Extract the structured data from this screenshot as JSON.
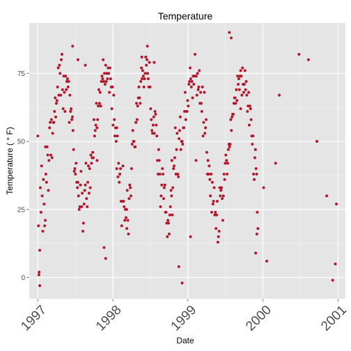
{
  "chart_data": {
    "type": "scatter",
    "title": "Temperature",
    "xlabel": "Date",
    "ylabel": "Temperature ( ° F)",
    "x_range": [
      "1996-11-20",
      "2001-02-06"
    ],
    "ylim": [
      -7.8,
      93.5
    ],
    "x_ticks": [
      {
        "label": "1997",
        "date": "1997-01-01"
      },
      {
        "label": "1998",
        "date": "1998-01-01"
      },
      {
        "label": "1999",
        "date": "1999-01-01"
      },
      {
        "label": "2000",
        "date": "2000-01-01"
      },
      {
        "label": "2001",
        "date": "2001-01-01"
      }
    ],
    "y_ticks": [
      0,
      25,
      50,
      75
    ],
    "grid": true,
    "background_color": "#e5e5e5",
    "point_color": "#b2182b",
    "x_start": "1997-01-01",
    "x_step_days": 3,
    "y": [
      52,
      19,
      2,
      10,
      33,
      24,
      41,
      30,
      17,
      36,
      27,
      19,
      21,
      38,
      35,
      48,
      45,
      32,
      43,
      55,
      57,
      45,
      58,
      44,
      53,
      57,
      57,
      61,
      66,
      59,
      64,
      65,
      70,
      77,
      67,
      78,
      75,
      67,
      80,
      82,
      69,
      62,
      74,
      68,
      61,
      74,
      69,
      72,
      73,
      70,
      72,
      57,
      67,
      61,
      62,
      58,
      59,
      54,
      47,
      39,
      40,
      38,
      42,
      35,
      33,
      35,
      30,
      25,
      26,
      34,
      39,
      26,
      31,
      17,
      20,
      27,
      32,
      34,
      42,
      29,
      26,
      35,
      41,
      31,
      40,
      33,
      45,
      42,
      44,
      46,
      44,
      58,
      52,
      54,
      56,
      64,
      55,
      58,
      63,
      69,
      64,
      68,
      63,
      72,
      74,
      73,
      80,
      72,
      75,
      71,
      78,
      72,
      75,
      73,
      77,
      75,
      68,
      77,
      73,
      70,
      62,
      70,
      56,
      67,
      58,
      52,
      55,
      50,
      55,
      52,
      37,
      42,
      35,
      38,
      40,
      28,
      19,
      28,
      41,
      28,
      26,
      21,
      25,
      22,
      25,
      32,
      21,
      16,
      29,
      34,
      33,
      30,
      40,
      49,
      54,
      50,
      50,
      48,
      48,
      57,
      64,
      58,
      63,
      66,
      70,
      66,
      64,
      72,
      77,
      73,
      76,
      74,
      70,
      73,
      75,
      81,
      78,
      80,
      75,
      73,
      70,
      79,
      70,
      62,
      58,
      54,
      53,
      56,
      59,
      53,
      61,
      60,
      56,
      52,
      43,
      38,
      47,
      43,
      38,
      26,
      30,
      34,
      40,
      38,
      29,
      33,
      34,
      24,
      24,
      20,
      15,
      21,
      20,
      16,
      23,
      26,
      32,
      30,
      23,
      33,
      40,
      41,
      44,
      55,
      38,
      47,
      53,
      38,
      37,
      51,
      54,
      59,
      47,
      50,
      50,
      49,
      55,
      55,
      61,
      68,
      58,
      61,
      61,
      65,
      63,
      71,
      72,
      77,
      73,
      70,
      72,
      66,
      74,
      71,
      74,
      82,
      74,
      74,
      67,
      75,
      69,
      70,
      76,
      64,
      68,
      64,
      61,
      70,
      52,
      57,
      68,
      53,
      55,
      58,
      46,
      38,
      43,
      38,
      41,
      36,
      30,
      38,
      24,
      35,
      27,
      28,
      33,
      23,
      24,
      18,
      23,
      28,
      13,
      15,
      17,
      33,
      30,
      32,
      33,
      29,
      21,
      30,
      38,
      36,
      42,
      45,
      43,
      38,
      42,
      47,
      49,
      48,
      49,
      58,
      54,
      59,
      60,
      60,
      64,
      66,
      66,
      64,
      69,
      65,
      74,
      71,
      73,
      69,
      74,
      76,
      74,
      67,
      77,
      71,
      68,
      71,
      76,
      69,
      72,
      67,
      61,
      63,
      68,
      56,
      63,
      62,
      58,
      52,
      49,
      52,
      38,
      36,
      44,
      47,
      40,
      38,
      24,
      18
    ],
    "extra_points": [
      {
        "x": "1997-01-06",
        "y": 1
      },
      {
        "x": "1997-01-10",
        "y": -3
      },
      {
        "x": "1997-02-07",
        "y": 48
      },
      {
        "x": "1997-06-19",
        "y": 85
      },
      {
        "x": "1997-07-15",
        "y": 80
      },
      {
        "x": "1997-08-20",
        "y": 78
      },
      {
        "x": "1997-10-16",
        "y": 43
      },
      {
        "x": "1997-11-19",
        "y": 11
      },
      {
        "x": "1997-11-27",
        "y": 7
      },
      {
        "x": "1998-01-20",
        "y": 40
      },
      {
        "x": "1998-03-10",
        "y": 18
      },
      {
        "x": "1998-05-22",
        "y": 81
      },
      {
        "x": "1998-06-18",
        "y": 85
      },
      {
        "x": "1998-07-21",
        "y": 79
      },
      {
        "x": "1998-10-15",
        "y": 43
      },
      {
        "x": "1998-11-18",
        "y": 4
      },
      {
        "x": "1998-12-04",
        "y": -2
      },
      {
        "x": "1999-01-14",
        "y": 15
      },
      {
        "x": "1999-02-10",
        "y": 43
      },
      {
        "x": "1999-07-22",
        "y": 90
      },
      {
        "x": "1999-07-31",
        "y": 88
      },
      {
        "x": "1999-09-15",
        "y": 62
      },
      {
        "x": "1999-11-27",
        "y": 9
      },
      {
        "x": "1999-12-03",
        "y": 16
      },
      {
        "x": "2000-01-05",
        "y": 33
      },
      {
        "x": "2000-01-20",
        "y": 6
      },
      {
        "x": "2000-03-03",
        "y": 42
      },
      {
        "x": "2000-03-21",
        "y": 67
      },
      {
        "x": "2000-06-25",
        "y": 82
      },
      {
        "x": "2000-08-10",
        "y": 80
      },
      {
        "x": "2000-09-20",
        "y": 50
      },
      {
        "x": "2000-11-07",
        "y": 30
      },
      {
        "x": "2000-12-06",
        "y": -1
      },
      {
        "x": "2000-12-19",
        "y": 5
      },
      {
        "x": "2000-12-24",
        "y": 27
      }
    ]
  }
}
